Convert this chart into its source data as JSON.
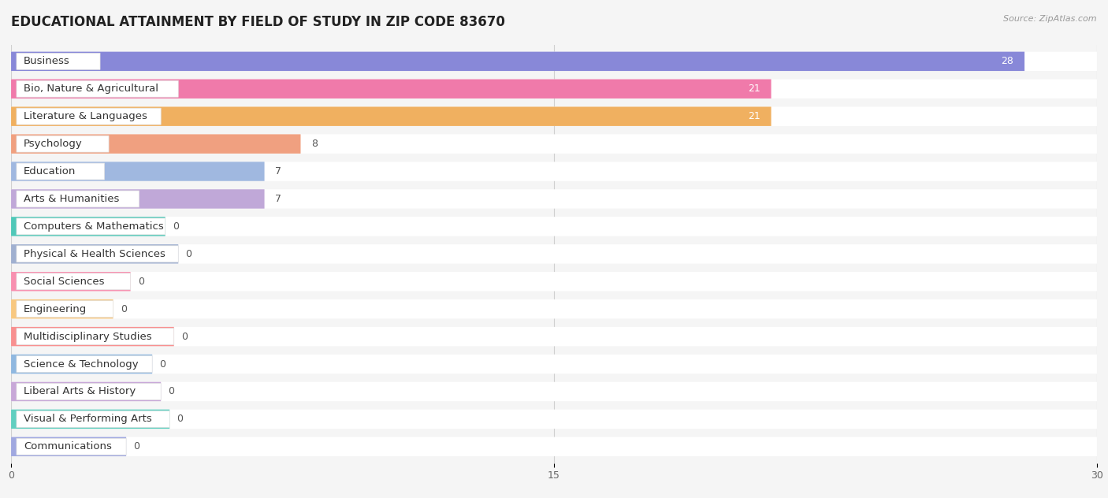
{
  "title": "EDUCATIONAL ATTAINMENT BY FIELD OF STUDY IN ZIP CODE 83670",
  "source": "Source: ZipAtlas.com",
  "categories": [
    "Business",
    "Bio, Nature & Agricultural",
    "Literature & Languages",
    "Psychology",
    "Education",
    "Arts & Humanities",
    "Computers & Mathematics",
    "Physical & Health Sciences",
    "Social Sciences",
    "Engineering",
    "Multidisciplinary Studies",
    "Science & Technology",
    "Liberal Arts & History",
    "Visual & Performing Arts",
    "Communications"
  ],
  "values": [
    28,
    21,
    21,
    8,
    7,
    7,
    0,
    0,
    0,
    0,
    0,
    0,
    0,
    0,
    0
  ],
  "bar_colors": [
    "#8888d8",
    "#f07aaa",
    "#f0b060",
    "#f0a080",
    "#a0b8e0",
    "#c0a8d8",
    "#50c8b8",
    "#a0b0d0",
    "#f890b0",
    "#f8c880",
    "#f89090",
    "#90b8e0",
    "#c8a8d8",
    "#60cfc0",
    "#a0a8e0"
  ],
  "xlim": [
    0,
    30
  ],
  "xticks": [
    0,
    15,
    30
  ],
  "background_color": "#f5f5f5",
  "row_bg_color": "#ffffff",
  "title_fontsize": 12,
  "label_fontsize": 9.5,
  "value_fontsize": 9
}
